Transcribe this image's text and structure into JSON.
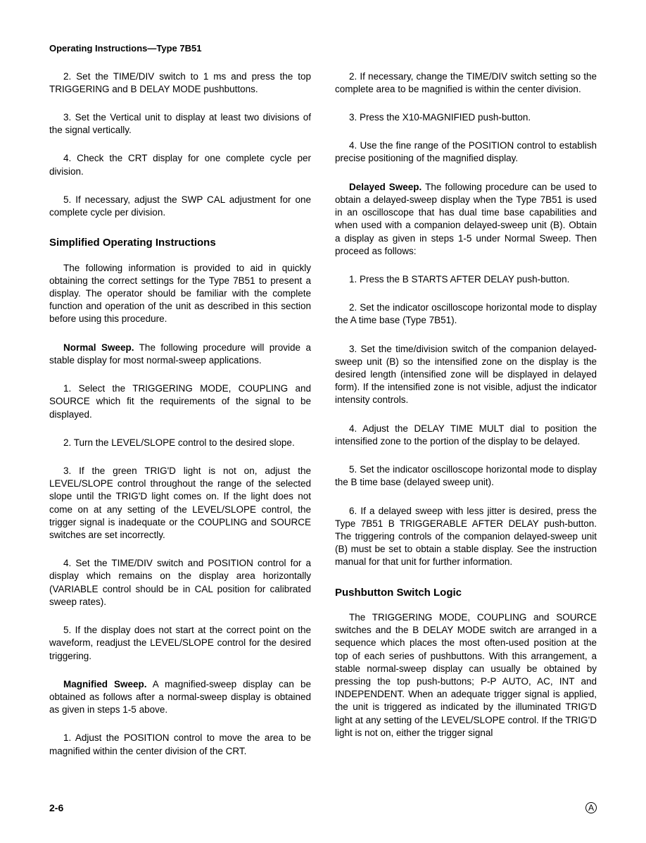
{
  "header": "Operating Instructions—Type 7B51",
  "left": {
    "p1": "2. Set the TIME/DIV switch to 1 ms and press the top TRIGGERING and B DELAY MODE pushbuttons.",
    "p2": "3. Set the Vertical unit to display at least two divisions of the signal vertically.",
    "p3": "4. Check the CRT display for one complete cycle per division.",
    "p4": "5. If necessary, adjust the SWP CAL adjustment for one complete cycle per division.",
    "h1": "Simplified Operating Instructions",
    "p5": "The following information is provided to aid in quickly obtaining the correct settings for the Type 7B51 to present a display. The operator should be familiar with the complete function and operation of the unit as described in this section before using this procedure.",
    "p6_runin": "Normal Sweep.",
    "p6": " The following procedure will provide a stable display for most normal-sweep applications.",
    "p7": "1. Select the TRIGGERING MODE, COUPLING and SOURCE which fit the requirements of the signal to be displayed.",
    "p8": "2. Turn the LEVEL/SLOPE control to the desired slope.",
    "p9": "3. If the green TRIG'D light is not on, adjust the LEVEL/SLOPE control throughout the range of the selected slope until the TRIG'D light comes on. If the light does not come on at any setting of the LEVEL/SLOPE control, the trigger signal is inadequate or the COUPLING and SOURCE switches are set incorrectly.",
    "p10": "4. Set the TIME/DIV switch and POSITION control for a display which remains on the display area horizontally (VARIABLE control should be in CAL position for calibrated sweep rates).",
    "p11": "5. If the display does not start at the correct point on the waveform, readjust the LEVEL/SLOPE control for the desired triggering.",
    "p12_runin": "Magnified Sweep.",
    "p12": " A magnified-sweep display can be obtained as follows after a normal-sweep display is obtained as given in steps 1-5 above.",
    "p13": "1. Adjust the POSITION control to move the area to be magnified within the center division of the CRT."
  },
  "right": {
    "p1": "2. If necessary, change the TIME/DIV switch setting so the complete area to be magnified is within the center division.",
    "p2": "3. Press the X10-MAGNIFIED push-button.",
    "p3": "4. Use the fine range of the POSITION control to establish precise positioning of the magnified display.",
    "p4_runin": "Delayed Sweep.",
    "p4": " The following procedure can be used to obtain a delayed-sweep display when the Type 7B51 is used in an oscilloscope that has dual time base capabilities and when used with a companion delayed-sweep unit (B). Obtain a display as given in steps 1-5 under Normal Sweep. Then proceed as follows:",
    "p5": "1. Press the B STARTS AFTER DELAY push-button.",
    "p6": "2. Set the indicator oscilloscope horizontal mode to display the A time base (Type 7B51).",
    "p7": "3. Set the time/division switch of the companion delayed-sweep unit (B) so the intensified zone on the display is the desired length (intensified zone will be displayed in delayed form). If the intensified zone is not visible, adjust the indicator intensity controls.",
    "p8": "4. Adjust the DELAY TIME MULT dial to position the intensified zone to the portion of the display to be delayed.",
    "p9": "5. Set the indicator oscilloscope horizontal mode to display the B time base (delayed sweep unit).",
    "p10": "6. If a delayed sweep with less jitter is desired, press the Type 7B51 B TRIGGERABLE AFTER DELAY push-button. The triggering controls of the companion delayed-sweep unit (B) must be set to obtain a stable display. See the instruction manual for that unit for further information.",
    "h1": "Pushbutton Switch Logic",
    "p11": "The TRIGGERING MODE, COUPLING and SOURCE switches and the B DELAY MODE switch are arranged in a sequence which places the most often-used position at the top of each series of pushbuttons. With this arrangement, a stable normal-sweep display can usually be obtained by pressing the top push-buttons; P-P AUTO, AC, INT and INDEPENDENT. When an adequate trigger signal is applied, the unit is triggered as indicated by the illuminated TRIG'D light at any setting of the LEVEL/SLOPE control. If the TRIG'D light is not on, either the trigger signal"
  },
  "footer": {
    "page": "2-6",
    "logo": "A"
  },
  "watermark_text": ""
}
